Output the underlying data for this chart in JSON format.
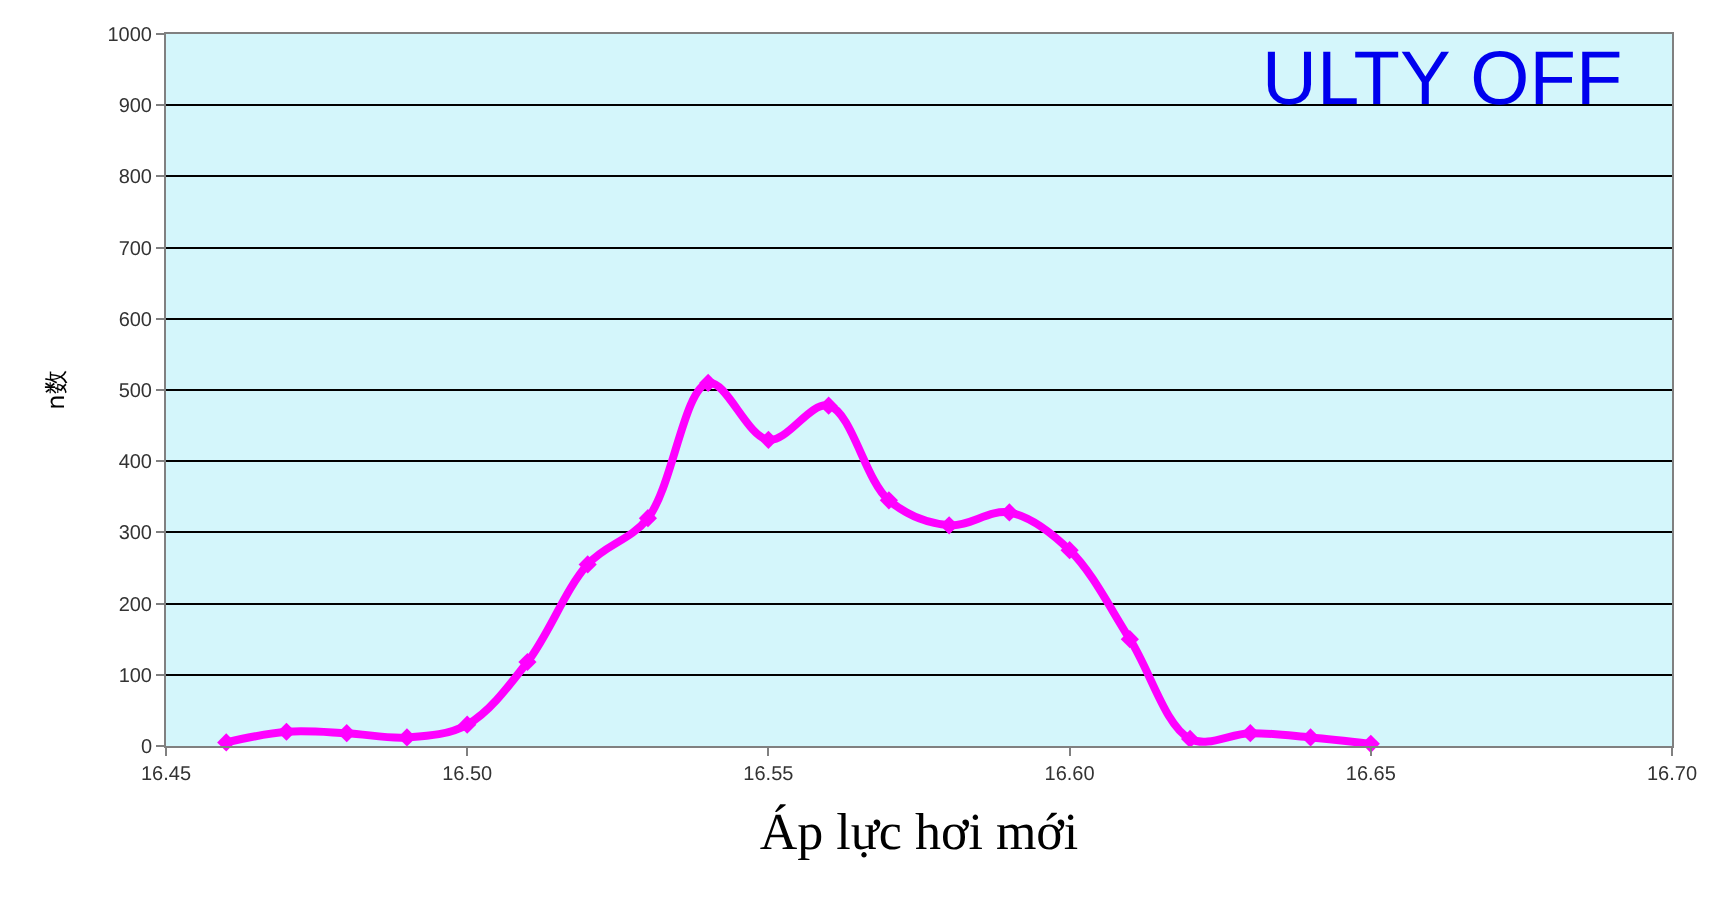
{
  "chart_data": {
    "type": "line",
    "xlabel": "Áp lực hơi mới",
    "ylabel": "n数",
    "annotations": [
      "ULTY OFF"
    ],
    "x": [
      16.46,
      16.47,
      16.48,
      16.49,
      16.5,
      16.51,
      16.52,
      16.53,
      16.54,
      16.55,
      16.56,
      16.57,
      16.58,
      16.59,
      16.6,
      16.61,
      16.62,
      16.63,
      16.64,
      16.65
    ],
    "series": [
      {
        "color": "#ff00ff",
        "values": [
          5,
          20,
          18,
          12,
          30,
          118,
          255,
          320,
          510,
          430,
          478,
          345,
          310,
          328,
          275,
          150,
          10,
          18,
          12,
          3
        ]
      }
    ],
    "xlim": [
      16.45,
      16.7
    ],
    "xticks": [
      {
        "value": 16.45,
        "label": "16.45"
      },
      {
        "value": 16.5,
        "label": "16.50"
      },
      {
        "value": 16.55,
        "label": "16.55"
      },
      {
        "value": 16.6,
        "label": "16.60"
      },
      {
        "value": 16.65,
        "label": "16.65"
      },
      {
        "value": 16.7,
        "label": "16.70"
      }
    ],
    "ylim": [
      0,
      1000
    ],
    "yticks": [
      0,
      100,
      200,
      300,
      400,
      500,
      600,
      700,
      800,
      900,
      1000
    ],
    "grid": "y",
    "marker": "diamond",
    "line_style": "solid"
  }
}
